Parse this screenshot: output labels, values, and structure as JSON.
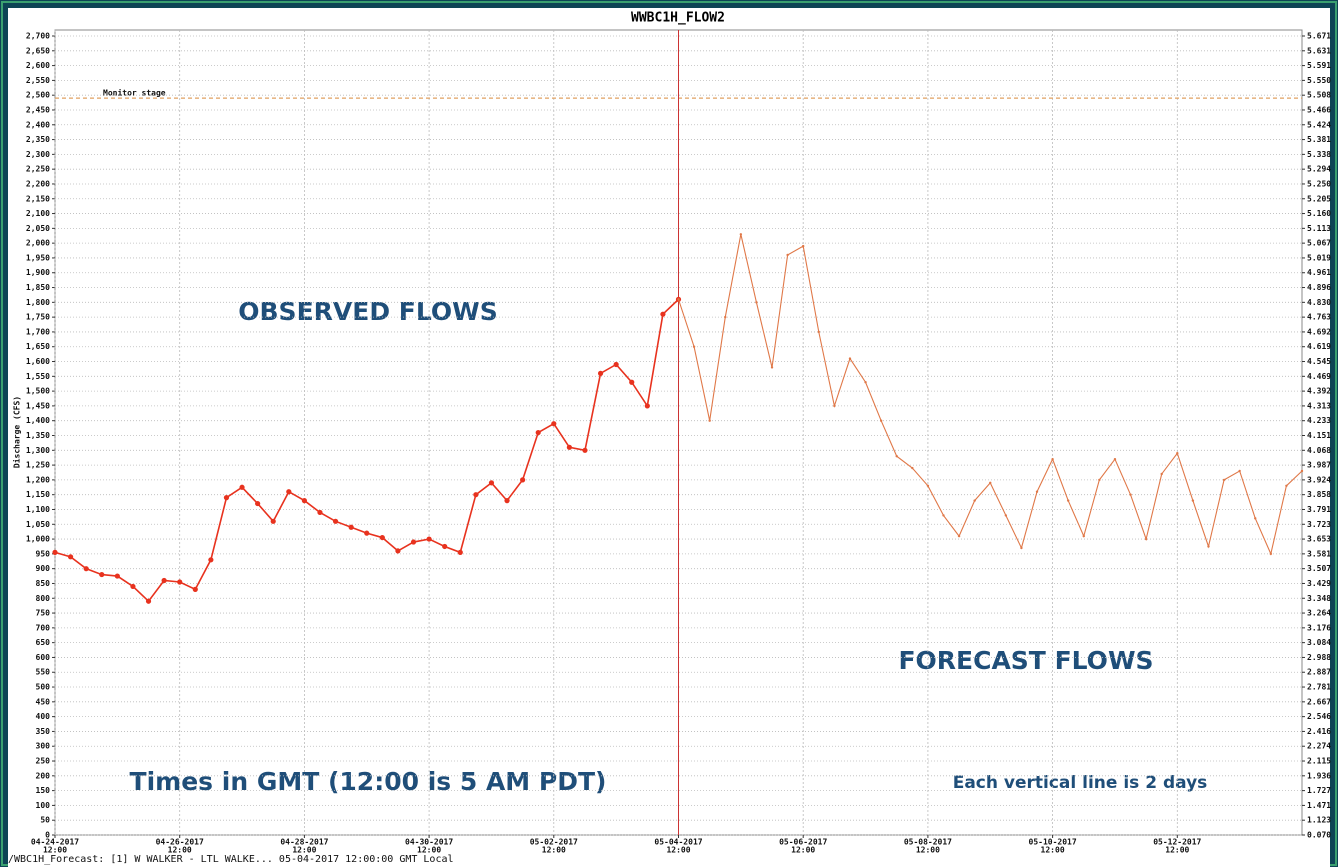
{
  "chart_data": {
    "type": "line",
    "title": "WWBC1H_FLOW2",
    "ylabel": "Discharge (CFS)",
    "xlim": [
      "2017-04-24T12:00",
      "2017-05-14T12:00"
    ],
    "ylim": [
      0,
      2700
    ],
    "grid": true,
    "yticks": [
      0,
      50,
      100,
      150,
      200,
      250,
      300,
      350,
      400,
      450,
      500,
      550,
      600,
      650,
      700,
      750,
      800,
      850,
      900,
      950,
      {
        "value": 1000,
        "label": "1,000"
      },
      {
        "value": 1050,
        "label": "1,050"
      },
      {
        "value": 1100,
        "label": "1,100"
      },
      {
        "value": 1150,
        "label": "1,150"
      },
      {
        "value": 1200,
        "label": "1,200"
      },
      {
        "value": 1250,
        "label": "1,250"
      },
      {
        "value": 1300,
        "label": "1,300"
      },
      {
        "value": 1350,
        "label": "1,350"
      },
      {
        "value": 1400,
        "label": "1,400"
      },
      {
        "value": 1450,
        "label": "1,450"
      },
      {
        "value": 1500,
        "label": "1,500"
      },
      {
        "value": 1550,
        "label": "1,550"
      },
      {
        "value": 1600,
        "label": "1,600"
      },
      {
        "value": 1650,
        "label": "1,650"
      },
      {
        "value": 1700,
        "label": "1,700"
      },
      {
        "value": 1750,
        "label": "1,750"
      },
      {
        "value": 1800,
        "label": "1,800"
      },
      {
        "value": 1850,
        "label": "1,850"
      },
      {
        "value": 1900,
        "label": "1,900"
      },
      {
        "value": 1950,
        "label": "1,950"
      },
      {
        "value": 2000,
        "label": "2,000"
      },
      {
        "value": 2050,
        "label": "2,050"
      },
      {
        "value": 2100,
        "label": "2,100"
      },
      {
        "value": 2150,
        "label": "2,150"
      },
      {
        "value": 2200,
        "label": "2,200"
      },
      {
        "value": 2250,
        "label": "2,250"
      },
      {
        "value": 2300,
        "label": "2,300"
      },
      {
        "value": 2350,
        "label": "2,350"
      },
      {
        "value": 2400,
        "label": "2,400"
      },
      {
        "value": 2450,
        "label": "2,450"
      },
      {
        "value": 2500,
        "label": "2,500"
      },
      {
        "value": 2550,
        "label": "2,550"
      },
      {
        "value": 2600,
        "label": "2,600"
      },
      {
        "value": 2650,
        "label": "2,650"
      },
      {
        "value": 2700,
        "label": "2,700"
      }
    ],
    "y2_tick_labels": [
      "0.070",
      "1.123",
      "1.471",
      "1.727",
      "1.936",
      "2.115",
      "2.274",
      "2.416",
      "2.546",
      "2.667",
      "2.781",
      "2.887",
      "2.988",
      "3.084",
      "3.176",
      "3.264",
      "3.348",
      "3.429",
      "3.507",
      "3.581",
      "3.653",
      "3.723",
      "3.791",
      "3.858",
      "3.924",
      "3.987",
      "4.068",
      "4.151",
      "4.233",
      "4.313",
      "4.392",
      "4.469",
      "4.545",
      "4.619",
      "4.692",
      "4.763",
      "4.830",
      "4.896",
      "4.961",
      "5.019",
      "5.067",
      "5.113",
      "5.160",
      "5.205",
      "5.250",
      "5.294",
      "5.338",
      "5.381",
      "5.424",
      "5.466",
      "5.508",
      "5.550",
      "5.591",
      "5.631",
      "5.671"
    ],
    "xticks": [
      {
        "value": "2017-04-24T12:00",
        "label": "04-24-2017"
      },
      {
        "value": "2017-04-26T12:00",
        "label": "04-26-2017"
      },
      {
        "value": "2017-04-28T12:00",
        "label": "04-28-2017"
      },
      {
        "value": "2017-04-30T12:00",
        "label": "04-30-2017"
      },
      {
        "value": "2017-05-02T12:00",
        "label": "05-02-2017"
      },
      {
        "value": "2017-05-04T12:00",
        "label": "05-04-2017"
      },
      {
        "value": "2017-05-06T12:00",
        "label": "05-06-2017"
      },
      {
        "value": "2017-05-08T12:00",
        "label": "05-08-2017"
      },
      {
        "value": "2017-05-10T12:00",
        "label": "05-10-2017"
      },
      {
        "value": "2017-05-12T12:00",
        "label": "05-12-2017"
      }
    ],
    "xtick_sublabels": [
      "12:00",
      "12:00",
      "12:00",
      "12:00",
      "12:00",
      "12:00",
      "12:00",
      "12:00",
      "12:00",
      "12:00"
    ],
    "threshold": {
      "label": "Monitor stage",
      "value": 2490,
      "color": "#e0a060"
    },
    "current_time": {
      "value": "2017-05-04T12:00",
      "color": "#cc3333"
    },
    "series": [
      {
        "name": "OBSERVED FLOWS",
        "color": "#e8321e",
        "markers": true,
        "x": [
          "2017-04-24T12:00",
          "2017-04-24T18:00",
          "2017-04-25T00:00",
          "2017-04-25T06:00",
          "2017-04-25T12:00",
          "2017-04-25T18:00",
          "2017-04-26T00:00",
          "2017-04-26T06:00",
          "2017-04-26T12:00",
          "2017-04-26T18:00",
          "2017-04-27T00:00",
          "2017-04-27T06:00",
          "2017-04-27T12:00",
          "2017-04-27T18:00",
          "2017-04-28T00:00",
          "2017-04-28T06:00",
          "2017-04-28T12:00",
          "2017-04-28T18:00",
          "2017-04-29T00:00",
          "2017-04-29T06:00",
          "2017-04-29T12:00",
          "2017-04-29T18:00",
          "2017-04-30T00:00",
          "2017-04-30T06:00",
          "2017-04-30T12:00",
          "2017-04-30T18:00",
          "2017-05-01T00:00",
          "2017-05-01T06:00",
          "2017-05-01T12:00",
          "2017-05-01T18:00",
          "2017-05-02T00:00",
          "2017-05-02T06:00",
          "2017-05-02T12:00",
          "2017-05-02T18:00",
          "2017-05-03T00:00",
          "2017-05-03T06:00",
          "2017-05-03T12:00",
          "2017-05-03T18:00",
          "2017-05-04T00:00",
          "2017-05-04T06:00",
          "2017-05-04T12:00"
        ],
        "values": [
          955,
          940,
          900,
          880,
          875,
          840,
          790,
          860,
          855,
          830,
          930,
          1140,
          1175,
          1120,
          1060,
          1160,
          1130,
          1090,
          1060,
          1040,
          1020,
          1005,
          960,
          990,
          1000,
          975,
          955,
          1150,
          1190,
          1130,
          1200,
          1360,
          1390,
          1310,
          1300,
          1560,
          1590,
          1530,
          1450,
          1760,
          1810
        ]
      },
      {
        "name": "FORECAST FLOWS",
        "color": "#e07848",
        "markers": false,
        "x": [
          "2017-05-04T12:00",
          "2017-05-04T18:00",
          "2017-05-05T00:00",
          "2017-05-05T06:00",
          "2017-05-05T12:00",
          "2017-05-05T18:00",
          "2017-05-06T00:00",
          "2017-05-06T06:00",
          "2017-05-06T12:00",
          "2017-05-06T18:00",
          "2017-05-07T00:00",
          "2017-05-07T06:00",
          "2017-05-07T12:00",
          "2017-05-07T18:00",
          "2017-05-08T00:00",
          "2017-05-08T06:00",
          "2017-05-08T12:00",
          "2017-05-08T18:00",
          "2017-05-09T00:00",
          "2017-05-09T06:00",
          "2017-05-09T12:00",
          "2017-05-09T18:00",
          "2017-05-10T00:00",
          "2017-05-10T06:00",
          "2017-05-10T12:00",
          "2017-05-10T18:00",
          "2017-05-11T00:00",
          "2017-05-11T06:00",
          "2017-05-11T12:00",
          "2017-05-11T18:00",
          "2017-05-12T00:00",
          "2017-05-12T06:00",
          "2017-05-12T12:00",
          "2017-05-12T18:00",
          "2017-05-13T00:00",
          "2017-05-13T06:00",
          "2017-05-13T12:00",
          "2017-05-13T18:00",
          "2017-05-14T00:00",
          "2017-05-14T06:00",
          "2017-05-14T12:00"
        ],
        "values": [
          1810,
          1650,
          1400,
          1750,
          2030,
          1800,
          1580,
          1960,
          1990,
          1700,
          1450,
          1610,
          1530,
          1400,
          1280,
          1240,
          1180,
          1080,
          1010,
          1130,
          1190,
          1080,
          970,
          1160,
          1270,
          1130,
          1010,
          1200,
          1270,
          1150,
          1000,
          1220,
          1290,
          1130,
          975,
          1200,
          1230,
          1070,
          950,
          1180,
          1230
        ]
      }
    ],
    "annotations": [
      "Times in GMT (12:00 is 5 AM PDT)",
      "Each vertical line is 2 days"
    ],
    "footer": "/WBC1H_Forecast: [1] W WALKER - LTL WALKE... 05-04-2017 12:00:00 GMT Local"
  }
}
